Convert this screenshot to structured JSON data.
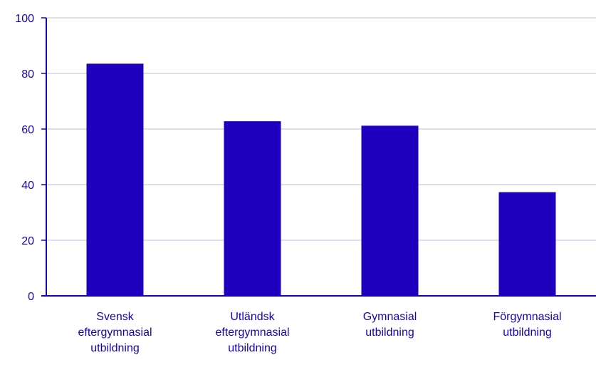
{
  "chart_data": {
    "type": "bar",
    "title": "",
    "xlabel": "",
    "ylabel": "",
    "ylim": [
      0,
      100
    ],
    "yticks": [
      0,
      20,
      40,
      60,
      80,
      100
    ],
    "grid": true,
    "categories": [
      [
        "Svensk",
        "eftergymnasial",
        "utbildning"
      ],
      [
        "Utländsk",
        "eftergymnasial",
        "utbildning"
      ],
      [
        "Gymnasial",
        "utbildning"
      ],
      [
        "Förgymnasial",
        "utbildning"
      ]
    ],
    "values": [
      83.5,
      62.8,
      61.2,
      37.3
    ]
  },
  "colors": {
    "bar": "#1e00be",
    "text": "#1a00b5",
    "axis": "#1a00b5",
    "grid": "#d4d4ea"
  }
}
